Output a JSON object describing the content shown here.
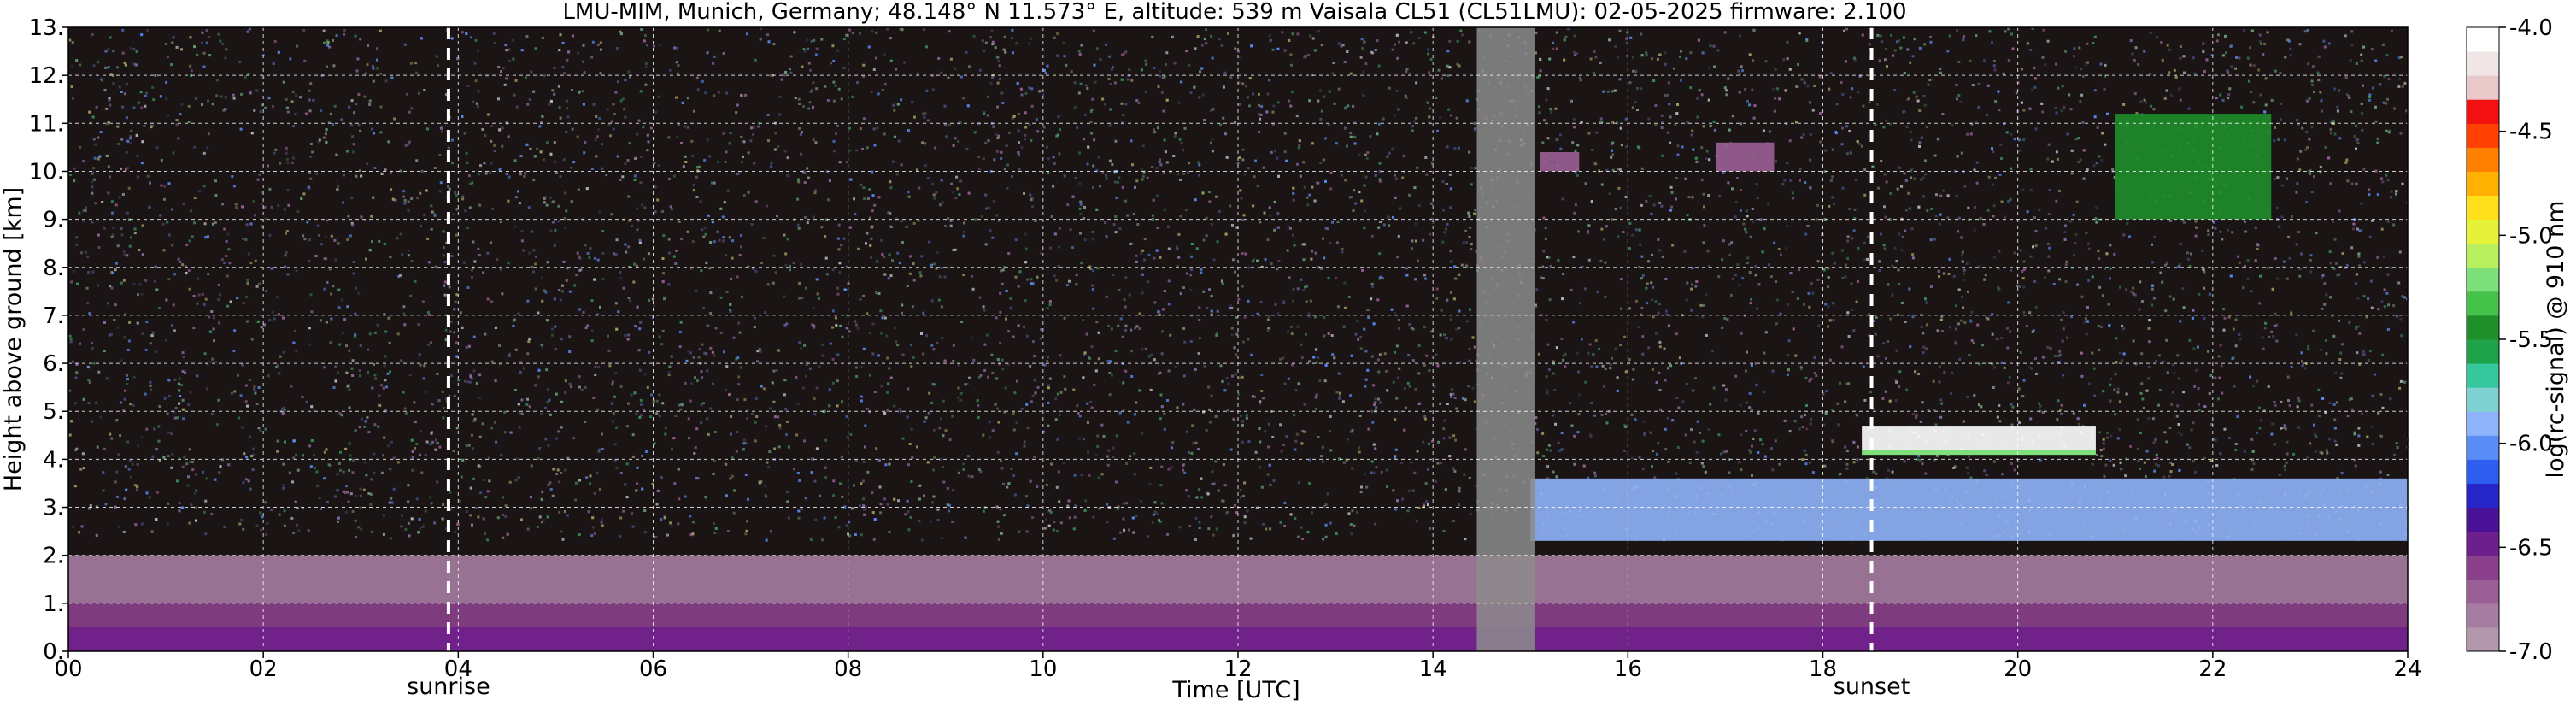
{
  "chart_data": {
    "type": "heatmap",
    "title": "LMU-MIM, Munich, Germany; 48.148° N 11.573° E, altitude: 539 m    Vaisala CL51 (CL51LMU): 02-05-2025    firmware: 2.100",
    "xlabel": "Time [UTC]",
    "ylabel": "Height above ground [km]",
    "xlim": [
      0,
      24
    ],
    "ylim": [
      0,
      13
    ],
    "x_ticks": [
      "00",
      "02",
      "04",
      "06",
      "08",
      "10",
      "12",
      "14",
      "16",
      "18",
      "20",
      "22",
      "24"
    ],
    "x_tick_values": [
      0,
      2,
      4,
      6,
      8,
      10,
      12,
      14,
      16,
      18,
      20,
      22,
      24
    ],
    "y_ticks": [
      "0.",
      "1.",
      "2.",
      "3.",
      "4.",
      "5.",
      "6.",
      "7.",
      "8.",
      "9.",
      "10.",
      "11.",
      "12.",
      "13."
    ],
    "y_tick_values": [
      0,
      1,
      2,
      3,
      4,
      5,
      6,
      7,
      8,
      9,
      10,
      11,
      12,
      13
    ],
    "grid": true,
    "colorbar": {
      "label": "log(rc-signal) @ 910 nm",
      "range": [
        -7.0,
        -4.0
      ],
      "ticks": [
        "-4.0",
        "-4.5",
        "-5.0",
        "-5.5",
        "-6.0",
        "-6.5",
        "-7.0"
      ],
      "tick_values": [
        -4.0,
        -4.5,
        -5.0,
        -5.5,
        -6.0,
        -6.5,
        -7.0
      ],
      "colors": [
        "#b298ad",
        "#a67ca0",
        "#9a5f95",
        "#8a3f8a",
        "#6d1f8c",
        "#4a1296",
        "#2626c8",
        "#2e5ef0",
        "#5a8cf5",
        "#8fb3fa",
        "#7fd0d0",
        "#34c89c",
        "#1fa34a",
        "#1f8f2a",
        "#45c24a",
        "#7de07a",
        "#b8ef5c",
        "#e6f23a",
        "#ffe01a",
        "#ffb000",
        "#ff8000",
        "#ff4000",
        "#f21010",
        "#e8c8c8",
        "#f0e6e6",
        "#ffffff"
      ]
    },
    "events": [
      {
        "label": "sunrise",
        "time": 3.9
      },
      {
        "label": "sunset",
        "time": 18.5
      }
    ],
    "features": [
      {
        "kind": "boundary layer / aerosol",
        "t_start": 0,
        "t_end": 24,
        "z_bottom": 0.0,
        "z_top": 1.0,
        "level": -6.6
      },
      {
        "kind": "residual layer",
        "t_start": 0,
        "t_end": 24,
        "z_bottom": 1.0,
        "z_top": 2.0,
        "level": -6.8
      },
      {
        "kind": "elevated aerosol layer",
        "t_start": 15.0,
        "t_end": 24,
        "z_bottom": 2.3,
        "z_top": 3.6,
        "level": -5.9
      },
      {
        "kind": "cloud layer",
        "t_start": 18.4,
        "t_end": 20.8,
        "z_bottom": 4.2,
        "z_top": 4.7,
        "level": -4.0
      },
      {
        "kind": "cirrus",
        "t_start": 21.0,
        "t_end": 22.6,
        "z_bottom": 9.0,
        "z_top": 11.2,
        "level": -5.4
      },
      {
        "kind": "thin cloud",
        "t_start": 15.1,
        "t_end": 15.5,
        "z_bottom": 10.0,
        "z_top": 10.4,
        "level": -6.7
      },
      {
        "kind": "thin cloud",
        "t_start": 16.9,
        "t_end": 17.5,
        "z_bottom": 10.0,
        "z_top": 10.6,
        "level": -6.7
      },
      {
        "kind": "missing data",
        "t_start": 14.45,
        "t_end": 15.05,
        "z_bottom": 0,
        "z_top": 13,
        "level": null
      }
    ]
  }
}
